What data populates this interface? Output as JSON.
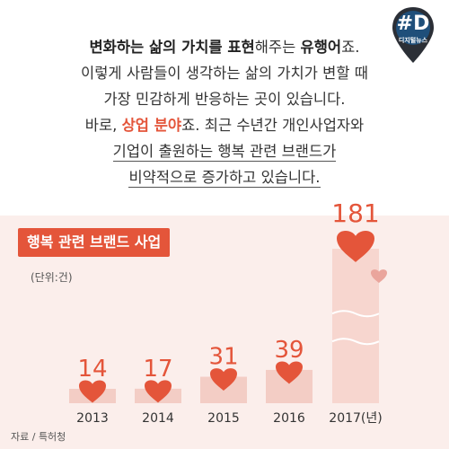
{
  "header": {
    "line1": [
      {
        "text": "변화하는 삶의 가치를 표현",
        "style": "bold"
      },
      {
        "text": "해주는 ",
        "style": "normal"
      },
      {
        "text": "유행어",
        "style": "bold"
      },
      {
        "text": "죠.",
        "style": "normal"
      }
    ],
    "line2": "이렇게 사람들이 생각하는 삶의 가치가 변할 때",
    "line3": "가장 민감하게 반응하는 곳이 있습니다.",
    "line4": [
      {
        "text": "바로, ",
        "style": "normal"
      },
      {
        "text": "상업 분야",
        "style": "accent"
      },
      {
        "text": "죠. 최근 수년간 개인사업자와",
        "style": "normal"
      }
    ],
    "line5": "기업이 출원하는 행복 관련 브랜드가",
    "line6": "비약적으로 증가하고 있습니다."
  },
  "badge": {
    "letter": "#D",
    "sub": "디지털뉴스"
  },
  "colors": {
    "accent": "#e4553a",
    "bar": "#f3cdc5",
    "bar_highlight": "#f7d6cf",
    "background": "#fbeeeb",
    "heart_small": "#eaa59c"
  },
  "chart_data": {
    "type": "bar",
    "title": "행복 관련 브랜드 사업",
    "unit_label": "(단위:건)",
    "categories": [
      "2013",
      "2014",
      "2015",
      "2016",
      "2017(년)"
    ],
    "values": [
      14,
      17,
      31,
      39,
      181
    ],
    "data_labels": [
      "14",
      "17",
      "31",
      "39",
      "181"
    ]
  },
  "source": "자료 / 특허청"
}
